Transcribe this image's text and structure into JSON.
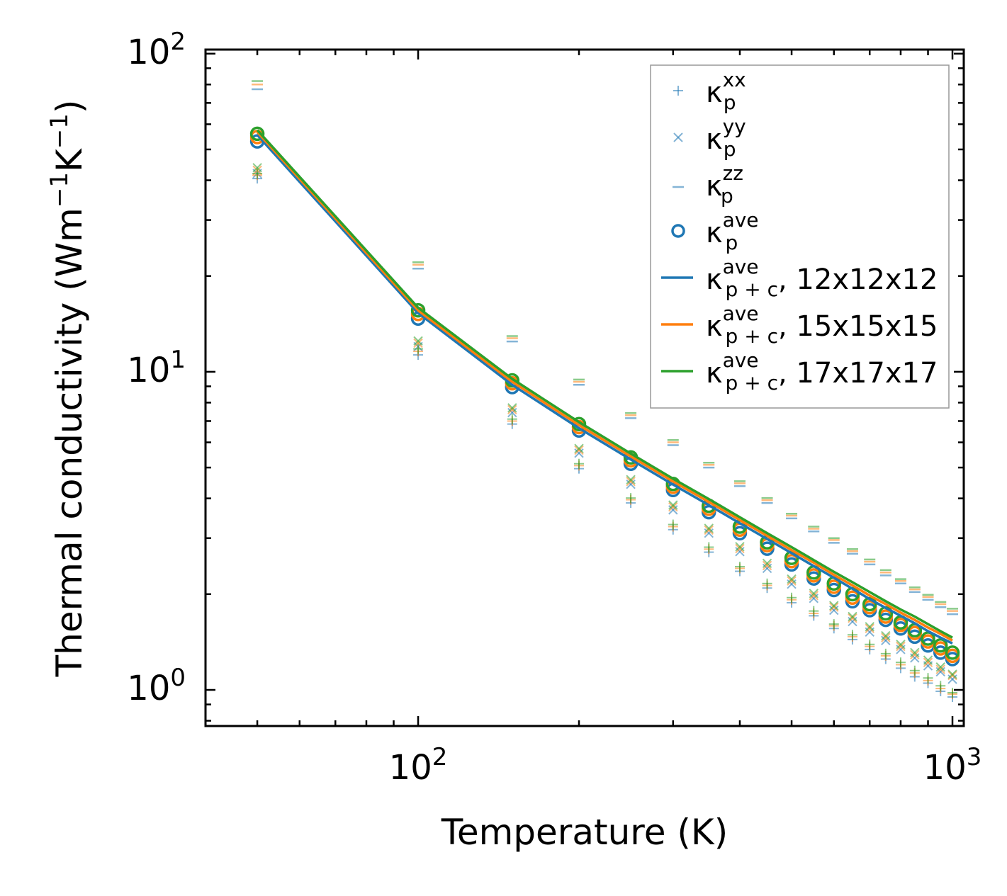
{
  "chart_data": {
    "type": "scatter",
    "title": "",
    "xlabel": "Temperature (K)",
    "ylabel": {
      "main": "Thermal conductivity (Wm",
      "sup1": "−1",
      "mid": "K",
      "sup2": "−1",
      "end": ")"
    },
    "xscale": "log",
    "yscale": "log",
    "xlim": [
      40,
      1050
    ],
    "ylim": [
      0.77,
      103
    ],
    "x_ticks": [
      {
        "value": 100,
        "base": "10",
        "exp": "2"
      },
      {
        "value": 1000,
        "base": "10",
        "exp": "3"
      }
    ],
    "y_ticks": [
      {
        "value": 1,
        "base": "10",
        "exp": "0"
      },
      {
        "value": 10,
        "base": "10",
        "exp": "1"
      },
      {
        "value": 100,
        "base": "10",
        "exp": "2"
      }
    ],
    "colors": {
      "blue": "#1f77b4",
      "orange": "#ff7f0e",
      "green": "#2ca02c"
    },
    "x": [
      50,
      100,
      150,
      200,
      250,
      300,
      350,
      400,
      450,
      500,
      550,
      600,
      650,
      700,
      750,
      800,
      850,
      900,
      950,
      1000
    ],
    "series": [
      {
        "name": "12x12x12",
        "color": "#1f77b4",
        "kxx": [
          40.5,
          11.3,
          6.85,
          4.96,
          3.87,
          3.19,
          2.71,
          2.36,
          2.09,
          1.88,
          1.71,
          1.56,
          1.44,
          1.34,
          1.25,
          1.17,
          1.1,
          1.05,
          0.99,
          0.95
        ],
        "kyy": [
          42.0,
          12.0,
          7.44,
          5.55,
          4.43,
          3.68,
          3.11,
          2.72,
          2.41,
          2.15,
          1.94,
          1.78,
          1.64,
          1.52,
          1.43,
          1.34,
          1.26,
          1.19,
          1.14,
          1.08
        ],
        "kzz": [
          77.3,
          21.1,
          12.45,
          9.1,
          7.15,
          5.88,
          5.0,
          4.37,
          3.87,
          3.46,
          3.15,
          2.9,
          2.68,
          2.48,
          2.29,
          2.16,
          2.03,
          1.92,
          1.82,
          1.73
        ],
        "kave": [
          53.0,
          14.7,
          8.95,
          6.54,
          5.14,
          4.25,
          3.62,
          3.11,
          2.78,
          2.48,
          2.24,
          2.06,
          1.9,
          1.78,
          1.66,
          1.56,
          1.47,
          1.38,
          1.31,
          1.25
        ],
        "kpc": [
          55.5,
          15.3,
          9.1,
          6.65,
          5.3,
          4.42,
          3.81,
          3.34,
          2.98,
          2.69,
          2.45,
          2.25,
          2.08,
          1.93,
          1.81,
          1.71,
          1.62,
          1.53,
          1.46,
          1.4
        ]
      },
      {
        "name": "15x15x15",
        "color": "#ff7f0e",
        "kxx": [
          41.5,
          11.6,
          7.0,
          5.07,
          3.96,
          3.26,
          2.77,
          2.41,
          2.13,
          1.92,
          1.74,
          1.59,
          1.47,
          1.37,
          1.28,
          1.2,
          1.13,
          1.07,
          1.01,
          0.97
        ],
        "kyy": [
          43.0,
          12.3,
          7.6,
          5.67,
          4.52,
          3.76,
          3.18,
          2.78,
          2.46,
          2.2,
          1.98,
          1.82,
          1.68,
          1.56,
          1.46,
          1.37,
          1.29,
          1.22,
          1.16,
          1.11
        ],
        "kzz": [
          80.0,
          21.7,
          12.75,
          9.3,
          7.3,
          6.0,
          5.1,
          4.46,
          3.95,
          3.53,
          3.21,
          2.96,
          2.73,
          2.53,
          2.34,
          2.2,
          2.07,
          1.96,
          1.86,
          1.77
        ],
        "kave": [
          54.7,
          15.2,
          9.2,
          6.7,
          5.27,
          4.35,
          3.71,
          3.19,
          2.85,
          2.54,
          2.29,
          2.11,
          1.95,
          1.82,
          1.7,
          1.6,
          1.51,
          1.42,
          1.35,
          1.28
        ],
        "kpc": [
          56.7,
          15.6,
          9.3,
          6.8,
          5.42,
          4.52,
          3.9,
          3.42,
          3.05,
          2.75,
          2.51,
          2.3,
          2.13,
          1.98,
          1.86,
          1.75,
          1.66,
          1.57,
          1.5,
          1.43
        ]
      },
      {
        "name": "17x17x17",
        "color": "#2ca02c",
        "kxx": [
          42.0,
          11.8,
          7.1,
          5.14,
          4.01,
          3.31,
          2.81,
          2.44,
          2.16,
          1.95,
          1.77,
          1.61,
          1.49,
          1.39,
          1.3,
          1.22,
          1.15,
          1.09,
          1.03,
          0.98
        ],
        "kyy": [
          43.8,
          12.5,
          7.7,
          5.74,
          4.58,
          3.81,
          3.22,
          2.82,
          2.5,
          2.23,
          2.01,
          1.84,
          1.7,
          1.58,
          1.48,
          1.39,
          1.31,
          1.24,
          1.18,
          1.12
        ],
        "kzz": [
          82.0,
          22.1,
          12.95,
          9.45,
          7.42,
          6.1,
          5.18,
          4.53,
          4.01,
          3.58,
          3.26,
          3.0,
          2.77,
          2.57,
          2.38,
          2.23,
          2.1,
          1.99,
          1.89,
          1.8
        ],
        "kave": [
          56.0,
          15.6,
          9.4,
          6.85,
          5.38,
          4.44,
          3.79,
          3.26,
          2.91,
          2.6,
          2.34,
          2.16,
          2.0,
          1.86,
          1.74,
          1.63,
          1.54,
          1.45,
          1.38,
          1.31
        ],
        "kpc": [
          57.5,
          15.9,
          9.5,
          6.95,
          5.53,
          4.61,
          3.98,
          3.49,
          3.11,
          2.81,
          2.56,
          2.35,
          2.18,
          2.03,
          1.9,
          1.79,
          1.7,
          1.61,
          1.53,
          1.46
        ]
      }
    ],
    "legend": {
      "position": "top-right",
      "entries": [
        {
          "marker": "plus",
          "label": "κ",
          "sub": "p",
          "sup": "xx",
          "suffix": ""
        },
        {
          "marker": "cross",
          "label": "κ",
          "sub": "p",
          "sup": "yy",
          "suffix": ""
        },
        {
          "marker": "dash",
          "label": "κ",
          "sub": "p",
          "sup": "zz",
          "suffix": ""
        },
        {
          "marker": "circle",
          "label": "κ",
          "sub": "p",
          "sup": "ave",
          "suffix": ""
        },
        {
          "marker": "line-blue",
          "label": "κ",
          "sub": "p + c",
          "sup": "ave",
          "suffix": ", 12x12x12"
        },
        {
          "marker": "line-orange",
          "label": "κ",
          "sub": "p + c",
          "sup": "ave",
          "suffix": ", 15x15x15"
        },
        {
          "marker": "line-green",
          "label": "κ",
          "sub": "p + c",
          "sup": "ave",
          "suffix": ", 17x17x17"
        }
      ]
    }
  }
}
